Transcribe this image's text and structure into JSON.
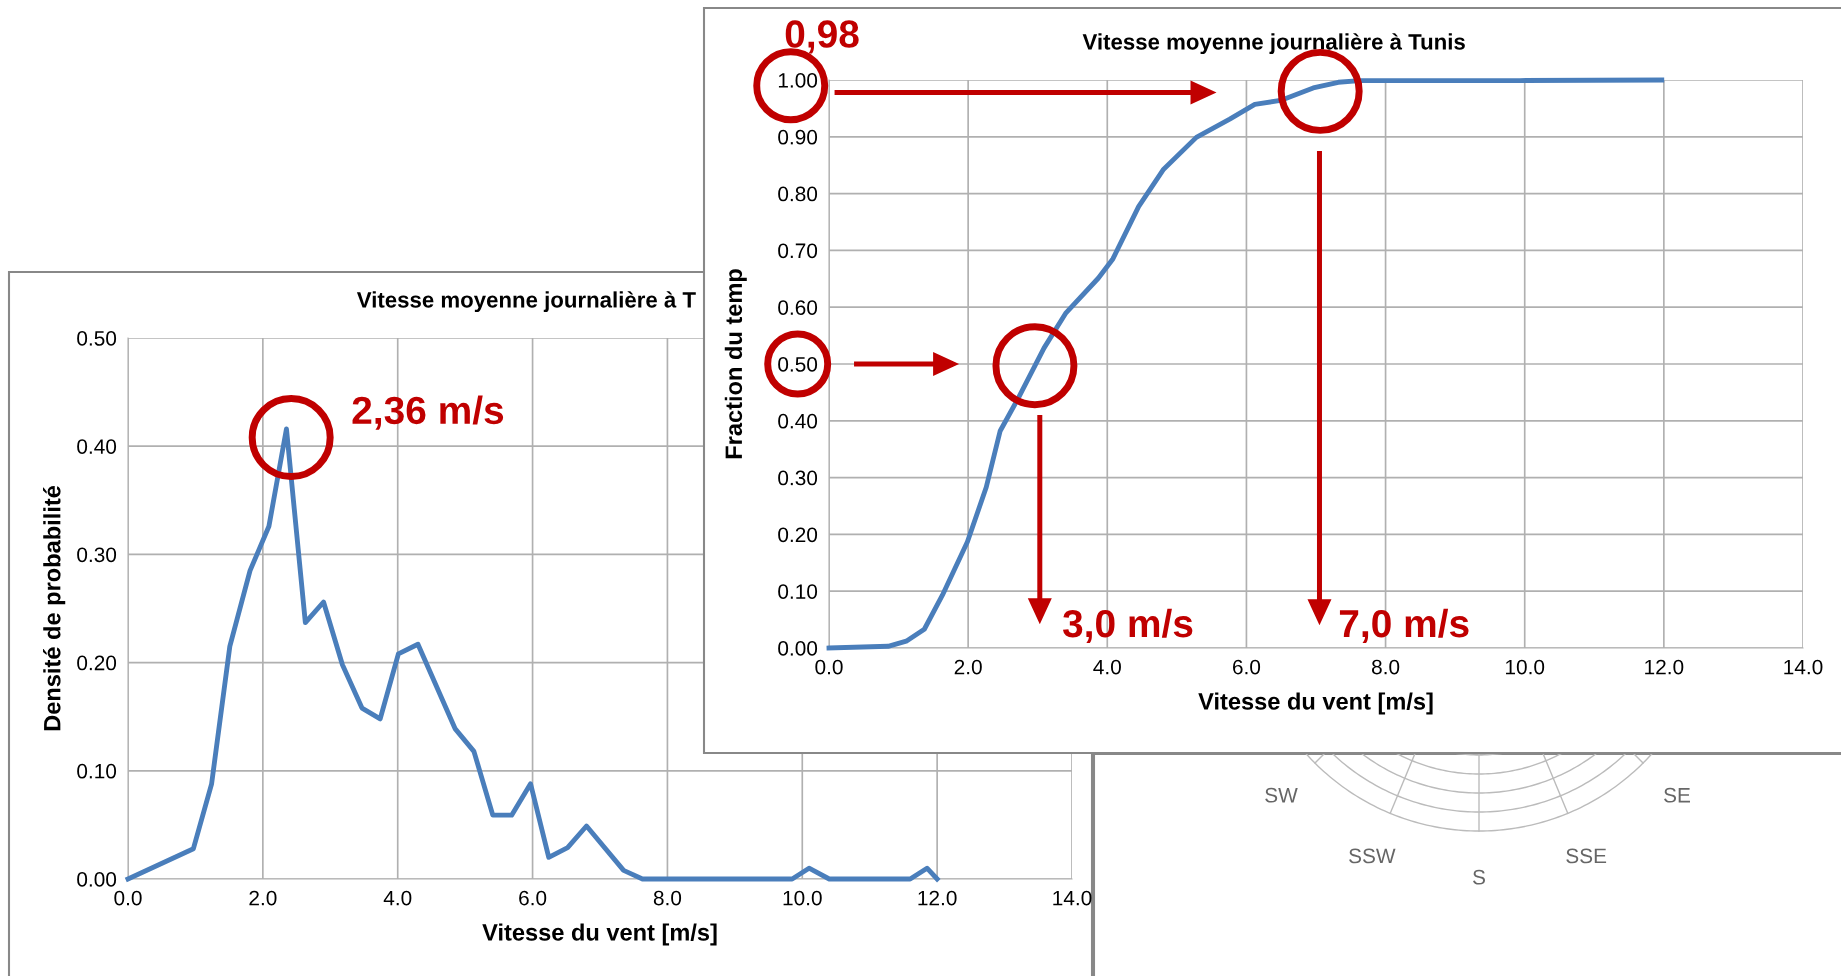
{
  "chart_data": [
    {
      "type": "line",
      "title": "Vitesse moyenne journalière à T",
      "xlabel": "Vitesse du vent [m/s]",
      "ylabel": "Densité de probabilité",
      "x": [
        0,
        0.97,
        1.24,
        1.51,
        1.81,
        2.09,
        2.35,
        2.63,
        2.9,
        3.18,
        3.47,
        3.74,
        4.01,
        4.3,
        4.85,
        5.13,
        5.41,
        5.69,
        5.97,
        6.24,
        6.52,
        6.8,
        7.35,
        7.63,
        9.85,
        10.1,
        10.4,
        11.6,
        11.85,
        12.0
      ],
      "series": [
        {
          "color": "#4a7ebb",
          "values": [
            0,
            0.028,
            0.088,
            0.215,
            0.285,
            0.326,
            0.416,
            0.237,
            0.256,
            0.198,
            0.158,
            0.148,
            0.208,
            0.217,
            0.139,
            0.118,
            0.059,
            0.059,
            0.088,
            0.02,
            0.029,
            0.049,
            0.008,
            0,
            0,
            0.01,
            0,
            0,
            0.01,
            0
          ]
        }
      ],
      "xlim": [
        0,
        14
      ],
      "ylim": [
        0,
        0.5
      ],
      "xticks": [
        {
          "value": 0,
          "label": "0.0"
        },
        {
          "value": 2,
          "label": "2.0"
        },
        {
          "value": 4,
          "label": "4.0"
        },
        {
          "value": 6,
          "label": "6.0"
        },
        {
          "value": 8,
          "label": "8.0"
        },
        {
          "value": 10,
          "label": "10.0"
        },
        {
          "value": 12,
          "label": "12.0"
        },
        {
          "value": 14,
          "label": "14.0"
        }
      ],
      "yticks": [
        {
          "value": 0,
          "label": "0.00"
        },
        {
          "value": 0.1,
          "label": "0.10"
        },
        {
          "value": 0.2,
          "label": "0.20"
        },
        {
          "value": 0.3,
          "label": "0.30"
        },
        {
          "value": 0.4,
          "label": "0.40"
        },
        {
          "value": 0.5,
          "label": "0.50"
        }
      ],
      "grid": true,
      "marker": "none",
      "line_style": "solid",
      "annotations": [
        "2,36 m/s"
      ]
    },
    {
      "type": "line",
      "title": "Vitesse moyenne journalière à Tunis",
      "xlabel": "Vitesse du vent [m/s]",
      "ylabel": "Fraction du temp",
      "x": [
        0,
        0.85,
        1.11,
        1.37,
        1.63,
        1.99,
        2.26,
        2.46,
        2.73,
        3.09,
        3.4,
        3.87,
        4.08,
        4.45,
        4.81,
        5.28,
        5.76,
        6.12,
        6.49,
        6.96,
        7.32,
        7.63,
        9.93,
        11.97
      ],
      "series": [
        {
          "color": "#4a7ebb",
          "values": [
            0,
            0.003,
            0.012,
            0.033,
            0.093,
            0.187,
            0.283,
            0.382,
            0.442,
            0.528,
            0.589,
            0.651,
            0.685,
            0.777,
            0.843,
            0.899,
            0.931,
            0.957,
            0.964,
            0.986,
            0.996,
            0.999,
            0.999,
            1.0
          ]
        }
      ],
      "xlim": [
        0,
        14
      ],
      "ylim": [
        0,
        1
      ],
      "xticks": [
        {
          "value": 0,
          "label": "0.0"
        },
        {
          "value": 2,
          "label": "2.0"
        },
        {
          "value": 4,
          "label": "4.0"
        },
        {
          "value": 6,
          "label": "6.0"
        },
        {
          "value": 8,
          "label": "8.0"
        },
        {
          "value": 10,
          "label": "10.0"
        },
        {
          "value": 12,
          "label": "12.0"
        },
        {
          "value": 14,
          "label": "14.0"
        }
      ],
      "yticks": [
        {
          "value": 0,
          "label": "0.00"
        },
        {
          "value": 0.1,
          "label": "0.10"
        },
        {
          "value": 0.2,
          "label": "0.20"
        },
        {
          "value": 0.3,
          "label": "0.30"
        },
        {
          "value": 0.4,
          "label": "0.40"
        },
        {
          "value": 0.5,
          "label": "0.50"
        },
        {
          "value": 0.6,
          "label": "0.60"
        },
        {
          "value": 0.7,
          "label": "0.70"
        },
        {
          "value": 0.8,
          "label": "0.80"
        },
        {
          "value": 0.9,
          "label": "0.90"
        },
        {
          "value": 1.0,
          "label": "1.00"
        }
      ],
      "grid": true,
      "marker": "none",
      "line_style": "solid",
      "annotations": [
        "0,98",
        "3,0 m/s",
        "7,0 m/s"
      ]
    },
    {
      "type": "other",
      "categories": [
        "SW",
        "SSW",
        "S",
        "SSE",
        "SE"
      ]
    }
  ]
}
